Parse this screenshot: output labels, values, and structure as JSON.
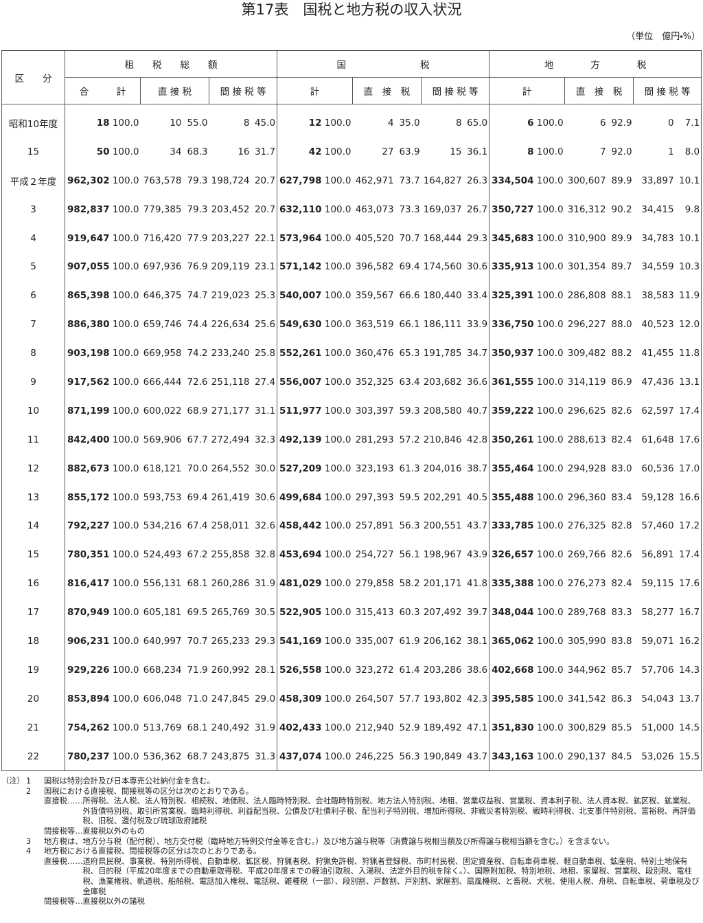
{
  "header": {
    "title": "第17表　国税と地方税の収入状況",
    "unit": "（単位　億円・%）"
  },
  "table": {
    "corner": "区　　分",
    "groups": [
      "租　　税　　総　　額",
      "国　　　　　　　　税",
      "地　　　　方　　　　税"
    ],
    "subheaders": [
      "合　　　計",
      "直 接 税",
      "間 接 税 等",
      "計",
      "直　接　税",
      "間 接 税 等",
      "計",
      "直　接　税",
      "間 接 税 等"
    ],
    "rows": [
      {
        "label": "昭和10年度",
        "cells": [
          "18",
          "100.0",
          "10",
          "55.0",
          "8",
          "45.0",
          "12",
          "100.0",
          "4",
          "35.0",
          "8",
          "65.0",
          "6",
          "100.0",
          "6",
          "92.9",
          "0",
          "7.1"
        ]
      },
      {
        "label": "15",
        "cells": [
          "50",
          "100.0",
          "34",
          "68.3",
          "16",
          "31.7",
          "42",
          "100.0",
          "27",
          "63.9",
          "15",
          "36.1",
          "8",
          "100.0",
          "7",
          "92.0",
          "1",
          "8.0"
        ]
      },
      {
        "label": "平成２年度",
        "cells": [
          "962,302",
          "100.0",
          "763,578",
          "79.3",
          "198,724",
          "20.7",
          "627,798",
          "100.0",
          "462,971",
          "73.7",
          "164,827",
          "26.3",
          "334,504",
          "100.0",
          "300,607",
          "89.9",
          "33,897",
          "10.1"
        ]
      },
      {
        "label": "3",
        "cells": [
          "982,837",
          "100.0",
          "779,385",
          "79.3",
          "203,452",
          "20.7",
          "632,110",
          "100.0",
          "463,073",
          "73.3",
          "169,037",
          "26.7",
          "350,727",
          "100.0",
          "316,312",
          "90.2",
          "34,415",
          "9.8"
        ]
      },
      {
        "label": "4",
        "cells": [
          "919,647",
          "100.0",
          "716,420",
          "77.9",
          "203,227",
          "22.1",
          "573,964",
          "100.0",
          "405,520",
          "70.7",
          "168,444",
          "29.3",
          "345,683",
          "100.0",
          "310,900",
          "89.9",
          "34,783",
          "10.1"
        ]
      },
      {
        "label": "5",
        "cells": [
          "907,055",
          "100.0",
          "697,936",
          "76.9",
          "209,119",
          "23.1",
          "571,142",
          "100.0",
          "396,582",
          "69.4",
          "174,560",
          "30.6",
          "335,913",
          "100.0",
          "301,354",
          "89.7",
          "34,559",
          "10.3"
        ]
      },
      {
        "label": "6",
        "cells": [
          "865,398",
          "100.0",
          "646,375",
          "74.7",
          "219,023",
          "25.3",
          "540,007",
          "100.0",
          "359,567",
          "66.6",
          "180,440",
          "33.4",
          "325,391",
          "100.0",
          "286,808",
          "88.1",
          "38,583",
          "11.9"
        ]
      },
      {
        "label": "7",
        "cells": [
          "886,380",
          "100.0",
          "659,746",
          "74.4",
          "226,634",
          "25.6",
          "549,630",
          "100.0",
          "363,519",
          "66.1",
          "186,111",
          "33.9",
          "336,750",
          "100.0",
          "296,227",
          "88.0",
          "40,523",
          "12.0"
        ]
      },
      {
        "label": "8",
        "cells": [
          "903,198",
          "100.0",
          "669,958",
          "74.2",
          "233,240",
          "25.8",
          "552,261",
          "100.0",
          "360,476",
          "65.3",
          "191,785",
          "34.7",
          "350,937",
          "100.0",
          "309,482",
          "88.2",
          "41,455",
          "11.8"
        ]
      },
      {
        "label": "9",
        "cells": [
          "917,562",
          "100.0",
          "666,444",
          "72.6",
          "251,118",
          "27.4",
          "556,007",
          "100.0",
          "352,325",
          "63.4",
          "203,682",
          "36.6",
          "361,555",
          "100.0",
          "314,119",
          "86.9",
          "47,436",
          "13.1"
        ]
      },
      {
        "label": "10",
        "cells": [
          "871,199",
          "100.0",
          "600,022",
          "68.9",
          "271,177",
          "31.1",
          "511,977",
          "100.0",
          "303,397",
          "59.3",
          "208,580",
          "40.7",
          "359,222",
          "100.0",
          "296,625",
          "82.6",
          "62,597",
          "17.4"
        ]
      },
      {
        "label": "11",
        "cells": [
          "842,400",
          "100.0",
          "569,906",
          "67.7",
          "272,494",
          "32.3",
          "492,139",
          "100.0",
          "281,293",
          "57.2",
          "210,846",
          "42.8",
          "350,261",
          "100.0",
          "288,613",
          "82.4",
          "61,648",
          "17.6"
        ]
      },
      {
        "label": "12",
        "cells": [
          "882,673",
          "100.0",
          "618,121",
          "70.0",
          "264,552",
          "30.0",
          "527,209",
          "100.0",
          "323,193",
          "61.3",
          "204,016",
          "38.7",
          "355,464",
          "100.0",
          "294,928",
          "83.0",
          "60,536",
          "17.0"
        ]
      },
      {
        "label": "13",
        "cells": [
          "855,172",
          "100.0",
          "593,753",
          "69.4",
          "261,419",
          "30.6",
          "499,684",
          "100.0",
          "297,393",
          "59.5",
          "202,291",
          "40.5",
          "355,488",
          "100.0",
          "296,360",
          "83.4",
          "59,128",
          "16.6"
        ]
      },
      {
        "label": "14",
        "cells": [
          "792,227",
          "100.0",
          "534,216",
          "67.4",
          "258,011",
          "32.6",
          "458,442",
          "100.0",
          "257,891",
          "56.3",
          "200,551",
          "43.7",
          "333,785",
          "100.0",
          "276,325",
          "82.8",
          "57,460",
          "17.2"
        ]
      },
      {
        "label": "15",
        "cells": [
          "780,351",
          "100.0",
          "524,493",
          "67.2",
          "255,858",
          "32.8",
          "453,694",
          "100.0",
          "254,727",
          "56.1",
          "198,967",
          "43.9",
          "326,657",
          "100.0",
          "269,766",
          "82.6",
          "56,891",
          "17.4"
        ]
      },
      {
        "label": "16",
        "cells": [
          "816,417",
          "100.0",
          "556,131",
          "68.1",
          "260,286",
          "31.9",
          "481,029",
          "100.0",
          "279,858",
          "58.2",
          "201,171",
          "41.8",
          "335,388",
          "100.0",
          "276,273",
          "82.4",
          "59,115",
          "17.6"
        ]
      },
      {
        "label": "17",
        "cells": [
          "870,949",
          "100.0",
          "605,181",
          "69.5",
          "265,769",
          "30.5",
          "522,905",
          "100.0",
          "315,413",
          "60.3",
          "207,492",
          "39.7",
          "348,044",
          "100.0",
          "289,768",
          "83.3",
          "58,277",
          "16.7"
        ]
      },
      {
        "label": "18",
        "cells": [
          "906,231",
          "100.0",
          "640,997",
          "70.7",
          "265,233",
          "29.3",
          "541,169",
          "100.0",
          "335,007",
          "61.9",
          "206,162",
          "38.1",
          "365,062",
          "100.0",
          "305,990",
          "83.8",
          "59,071",
          "16.2"
        ]
      },
      {
        "label": "19",
        "cells": [
          "929,226",
          "100.0",
          "668,234",
          "71.9",
          "260,992",
          "28.1",
          "526,558",
          "100.0",
          "323,272",
          "61.4",
          "203,286",
          "38.6",
          "402,668",
          "100.0",
          "344,962",
          "85.7",
          "57,706",
          "14.3"
        ]
      },
      {
        "label": "20",
        "cells": [
          "853,894",
          "100.0",
          "606,048",
          "71.0",
          "247,845",
          "29.0",
          "458,309",
          "100.0",
          "264,507",
          "57.7",
          "193,802",
          "42.3",
          "395,585",
          "100.0",
          "341,542",
          "86.3",
          "54,043",
          "13.7"
        ]
      },
      {
        "label": "21",
        "cells": [
          "754,262",
          "100.0",
          "513,769",
          "68.1",
          "240,492",
          "31.9",
          "402,433",
          "100.0",
          "212,940",
          "52.9",
          "189,492",
          "47.1",
          "351,830",
          "100.0",
          "300,829",
          "85.5",
          "51,000",
          "14.5"
        ]
      },
      {
        "label": "22",
        "cells": [
          "780,237",
          "100.0",
          "536,362",
          "68.7",
          "243,875",
          "31.3",
          "437,074",
          "100.0",
          "246,225",
          "56.3",
          "190,849",
          "43.7",
          "343,163",
          "100.0",
          "290,137",
          "84.5",
          "53,026",
          "15.5"
        ]
      }
    ]
  },
  "notes": {
    "prefix": "（注）",
    "items": [
      {
        "num": "1",
        "text": "国税は特別会計及び日本専売公社納付金を含む。",
        "sub": []
      },
      {
        "num": "2",
        "text": "国税における直接税、間接税等の区分は次のとおりである。",
        "sub": [
          {
            "label": "直接税……",
            "text": "所得税、法人税、法人特別税、相続税、地価税、法人臨時特別税、会社臨時特別税、地方法人特別税、地租、営業収益税、営業税、資本利子税、法人資本税、鉱区税、鉱業税、外貨債特別税、取引所営業税、臨時利得税、利益配当税、公債及び社債利子税、配当利子特別税、増加所得税、非戦災者特別税、戦時利得税、北支事件特別税、富裕税、再評価税、旧税、還付税及び琉球政府諸税"
          },
          {
            "label": "間接税等…",
            "text": "直接税以外のもの"
          }
        ]
      },
      {
        "num": "3",
        "text": "地方税は、地方分与税（配付税）、地方交付税（臨時地方特例交付金等を含む。）及び地方譲与税等（消費譲与税相当額及び所得譲与税相当額を含む。）を含まない。",
        "sub": []
      },
      {
        "num": "4",
        "text": "地方税における直接税、間接税等の区分は次のとおりである。",
        "sub": [
          {
            "label": "直接税……",
            "text": "道府県民税、事業税、特別所得税、自動車税、鉱区税、狩猟者税、狩猟免許税、狩猟者登録税、市町村民税、固定資産税、自転車荷車税、軽自動車税、鉱産税、特別土地保有税、目的税（平成20年度までの自動車取得税、平成20年度までの軽油引取税、入湯税、法定外目的税を除く。）、国際附加税、特別地税、地租、家屋税、営業税、段別税、電柱税、漁業権税、軌道税、船舶税、電話加入権税、電話税、雑種税（一部）、段別割、戸数割、戸別割、家屋割、扇風機税、と畜税、犬税、使用人税、舟税、自転車税、荷車税及び金庫税"
          },
          {
            "label": "間接税等…",
            "text": "直接税以外の諸税"
          }
        ]
      }
    ]
  }
}
